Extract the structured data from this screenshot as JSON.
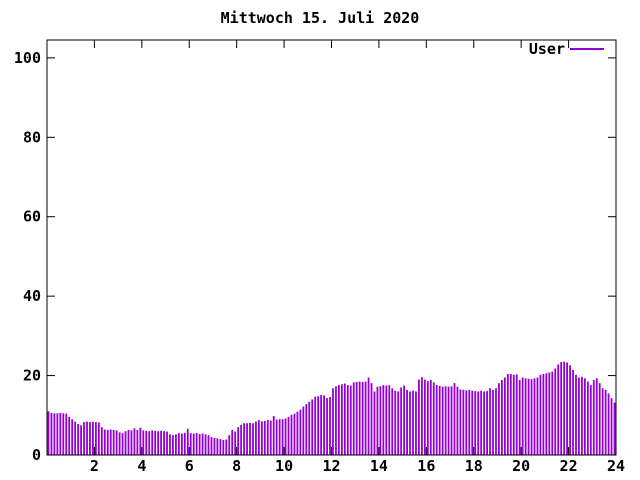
{
  "title": "Mittwoch 15. Juli 2020",
  "legend": {
    "label": "User",
    "color": "#9400D3"
  },
  "colors": {
    "background": "#ffffff",
    "frame": "#000000",
    "text": "#000000",
    "bars": "#9400D3"
  },
  "chart_data": {
    "type": "bar",
    "style": "impulses",
    "title": "Mittwoch 15. Juli 2020",
    "xlabel": "",
    "ylabel": "",
    "xlim": [
      0,
      24
    ],
    "ylim": [
      0,
      104.5
    ],
    "x_ticks": [
      2,
      4,
      6,
      8,
      10,
      12,
      14,
      16,
      18,
      20,
      22,
      24
    ],
    "y_ticks": [
      0,
      20,
      40,
      60,
      80,
      100
    ],
    "grid": false,
    "legend_position": "top-right",
    "series": [
      {
        "name": "User",
        "color": "#9400D3",
        "x_start_hour": 0,
        "x_step_hours": 0.125,
        "values": [
          11.0,
          10.6,
          10.5,
          10.5,
          10.6,
          10.5,
          10.4,
          9.6,
          9.0,
          8.4,
          7.8,
          7.5,
          8.3,
          8.4,
          8.3,
          8.4,
          8.3,
          8.2,
          7.0,
          6.4,
          6.3,
          6.4,
          6.3,
          6.2,
          5.7,
          5.5,
          6.0,
          6.3,
          6.2,
          6.7,
          6.3,
          6.9,
          6.2,
          6.1,
          6.0,
          6.2,
          6.1,
          6.0,
          6.1,
          6.0,
          5.9,
          5.2,
          5.0,
          5.2,
          5.5,
          5.4,
          5.6,
          6.6,
          5.5,
          5.4,
          5.5,
          5.3,
          5.4,
          5.2,
          5.0,
          4.5,
          4.3,
          4.2,
          4.0,
          3.8,
          3.9,
          5.0,
          6.3,
          5.9,
          7.0,
          7.6,
          8.0,
          8.0,
          8.1,
          8.0,
          8.4,
          8.8,
          8.5,
          8.6,
          8.8,
          8.7,
          9.8,
          8.9,
          9.0,
          9.0,
          9.2,
          9.6,
          10.1,
          10.4,
          10.9,
          11.4,
          12.2,
          12.8,
          13.4,
          14.0,
          14.7,
          14.8,
          15.1,
          15.0,
          14.3,
          14.6,
          16.8,
          17.3,
          17.6,
          17.8,
          18.0,
          17.6,
          17.5,
          18.3,
          18.4,
          18.5,
          18.4,
          18.5,
          19.5,
          18.1,
          16.0,
          17.2,
          17.3,
          17.6,
          17.5,
          17.6,
          16.8,
          16.2,
          16.0,
          17.0,
          17.5,
          16.4,
          16.0,
          16.2,
          16.0,
          19.0,
          19.6,
          19.0,
          18.6,
          18.9,
          18.3,
          17.6,
          17.4,
          17.2,
          17.3,
          17.2,
          17.3,
          18.1,
          17.2,
          16.5,
          16.4,
          16.3,
          16.4,
          16.2,
          16.1,
          16.0,
          16.2,
          16.0,
          16.1,
          16.8,
          16.4,
          16.8,
          18.1,
          18.9,
          19.5,
          20.4,
          20.4,
          20.2,
          20.3,
          18.9,
          19.5,
          19.3,
          19.2,
          19.1,
          19.3,
          19.5,
          20.2,
          20.4,
          20.6,
          20.8,
          21.0,
          21.8,
          22.8,
          23.4,
          23.5,
          23.3,
          22.6,
          21.4,
          20.2,
          19.5,
          19.7,
          19.3,
          18.5,
          17.6,
          18.9,
          19.3,
          18.1,
          16.8,
          16.4,
          15.5,
          14.3,
          13.2
        ]
      }
    ]
  }
}
